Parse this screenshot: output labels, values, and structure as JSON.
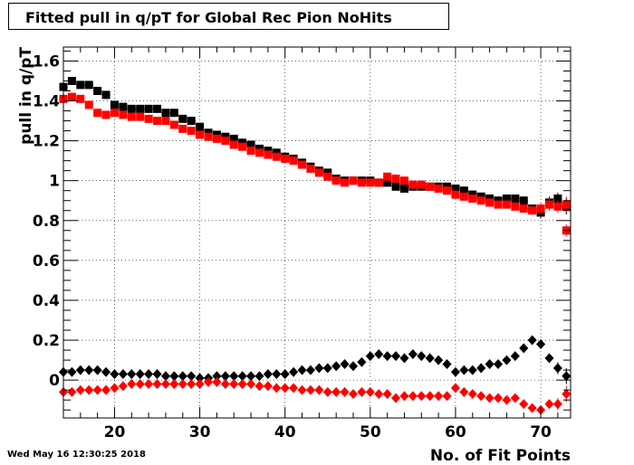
{
  "title": "Fitted pull in q/pT for Global Rec Pion NoHits",
  "timestamp": "Wed May 16 12:30:25 2018",
  "colors": {
    "series_black": "#000000",
    "series_red": "#ff0000",
    "grid": "#000000"
  },
  "chart_data": {
    "type": "scatter",
    "title": "Fitted pull in q/pT for Global Rec Pion NoHits",
    "xlabel": "No. of Fit Points",
    "ylabel": "pull in q/pT",
    "xlim": [
      14,
      73.5
    ],
    "ylim": [
      -0.19,
      1.67
    ],
    "xticks": [
      20,
      30,
      40,
      50,
      60,
      70
    ],
    "xtick_labels": [
      "20",
      "30",
      "40",
      "50",
      "60",
      "70"
    ],
    "yticks": [
      0,
      0.2,
      0.4,
      0.6,
      0.8,
      1,
      1.2,
      1.4,
      1.6
    ],
    "ytick_labels": [
      "0",
      "0.2",
      "0.4",
      "0.6",
      "0.8",
      "1",
      "1.2",
      "1.4",
      "1.6"
    ],
    "grid": true,
    "x": [
      14,
      15,
      16,
      17,
      18,
      19,
      20,
      21,
      22,
      23,
      24,
      25,
      26,
      27,
      28,
      29,
      30,
      31,
      32,
      33,
      34,
      35,
      36,
      37,
      38,
      39,
      40,
      41,
      42,
      43,
      44,
      45,
      46,
      47,
      48,
      49,
      50,
      51,
      52,
      53,
      54,
      55,
      56,
      57,
      58,
      59,
      60,
      61,
      62,
      63,
      64,
      65,
      66,
      67,
      68,
      69,
      70,
      71,
      72,
      73
    ],
    "series": [
      {
        "marker": "square",
        "color": "#000000",
        "values": [
          1.47,
          1.5,
          1.48,
          1.48,
          1.45,
          1.43,
          1.38,
          1.37,
          1.36,
          1.36,
          1.36,
          1.36,
          1.34,
          1.34,
          1.31,
          1.3,
          1.27,
          1.24,
          1.23,
          1.22,
          1.21,
          1.19,
          1.18,
          1.16,
          1.15,
          1.14,
          1.12,
          1.11,
          1.09,
          1.07,
          1.05,
          1.04,
          1.01,
          1.0,
          1.0,
          1.0,
          1.0,
          0.99,
          0.99,
          0.97,
          0.96,
          0.97,
          0.97,
          0.97,
          0.97,
          0.97,
          0.96,
          0.95,
          0.93,
          0.92,
          0.91,
          0.9,
          0.91,
          0.91,
          0.9,
          0.86,
          0.84,
          0.89,
          0.91,
          0.87
        ],
        "errors": [
          0.02,
          0.02,
          0.02,
          0.02,
          0.02,
          0.02,
          0.02,
          0.02,
          0.02,
          0.02,
          0.02,
          0.02,
          0.02,
          0.02,
          0.02,
          0.02,
          0.02,
          0.02,
          0.02,
          0.02,
          0.02,
          0.02,
          0.02,
          0.02,
          0.02,
          0.02,
          0.02,
          0.02,
          0.02,
          0.02,
          0.02,
          0.02,
          0.02,
          0.02,
          0.02,
          0.02,
          0.02,
          0.02,
          0.02,
          0.02,
          0.02,
          0.02,
          0.02,
          0.02,
          0.02,
          0.02,
          0.02,
          0.02,
          0.02,
          0.02,
          0.02,
          0.02,
          0.02,
          0.02,
          0.02,
          0.02,
          0.03,
          0.03,
          0.03,
          0.04
        ]
      },
      {
        "marker": "square",
        "color": "#ff0000",
        "values": [
          1.41,
          1.42,
          1.41,
          1.38,
          1.34,
          1.33,
          1.34,
          1.33,
          1.32,
          1.32,
          1.31,
          1.3,
          1.3,
          1.28,
          1.26,
          1.25,
          1.23,
          1.22,
          1.21,
          1.2,
          1.18,
          1.17,
          1.15,
          1.14,
          1.13,
          1.12,
          1.11,
          1.1,
          1.08,
          1.06,
          1.04,
          1.02,
          1.0,
          0.99,
          1.0,
          0.99,
          0.99,
          0.99,
          1.02,
          1.01,
          1.0,
          0.98,
          0.98,
          0.97,
          0.96,
          0.95,
          0.93,
          0.92,
          0.91,
          0.9,
          0.89,
          0.88,
          0.88,
          0.87,
          0.86,
          0.85,
          0.86,
          0.88,
          0.87,
          0.88
        ],
        "errors": [
          0.02,
          0.02,
          0.02,
          0.02,
          0.02,
          0.02,
          0.02,
          0.02,
          0.02,
          0.02,
          0.02,
          0.02,
          0.02,
          0.02,
          0.02,
          0.02,
          0.02,
          0.02,
          0.02,
          0.02,
          0.02,
          0.02,
          0.02,
          0.02,
          0.02,
          0.02,
          0.02,
          0.02,
          0.02,
          0.02,
          0.02,
          0.02,
          0.02,
          0.02,
          0.02,
          0.02,
          0.02,
          0.02,
          0.02,
          0.02,
          0.02,
          0.02,
          0.02,
          0.02,
          0.02,
          0.02,
          0.02,
          0.02,
          0.02,
          0.02,
          0.02,
          0.02,
          0.02,
          0.02,
          0.02,
          0.02,
          0.03,
          0.03,
          0.03,
          0.04
        ]
      },
      {
        "marker": "diamond",
        "color": "#000000",
        "values": [
          0.04,
          0.04,
          0.05,
          0.05,
          0.05,
          0.04,
          0.03,
          0.03,
          0.03,
          0.03,
          0.03,
          0.03,
          0.02,
          0.02,
          0.02,
          0.02,
          0.01,
          0.01,
          0.02,
          0.02,
          0.02,
          0.02,
          0.02,
          0.02,
          0.03,
          0.03,
          0.03,
          0.04,
          0.05,
          0.05,
          0.06,
          0.06,
          0.07,
          0.08,
          0.07,
          0.09,
          0.12,
          0.13,
          0.12,
          0.12,
          0.11,
          0.13,
          0.12,
          0.11,
          0.1,
          0.08,
          0.04,
          0.05,
          0.05,
          0.06,
          0.08,
          0.08,
          0.1,
          0.12,
          0.16,
          0.2,
          0.18,
          0.11,
          0.06,
          0.02
        ],
        "errors": [
          0.01,
          0.01,
          0.01,
          0.01,
          0.01,
          0.01,
          0.01,
          0.01,
          0.01,
          0.01,
          0.01,
          0.01,
          0.01,
          0.01,
          0.01,
          0.01,
          0.01,
          0.01,
          0.01,
          0.01,
          0.01,
          0.01,
          0.01,
          0.01,
          0.01,
          0.01,
          0.01,
          0.01,
          0.01,
          0.01,
          0.01,
          0.01,
          0.01,
          0.01,
          0.01,
          0.01,
          0.01,
          0.01,
          0.01,
          0.01,
          0.01,
          0.01,
          0.01,
          0.01,
          0.01,
          0.01,
          0.01,
          0.01,
          0.01,
          0.01,
          0.01,
          0.01,
          0.01,
          0.01,
          0.01,
          0.01,
          0.02,
          0.02,
          0.03,
          0.04
        ]
      },
      {
        "marker": "diamond",
        "color": "#ff0000",
        "values": [
          -0.06,
          -0.06,
          -0.05,
          -0.05,
          -0.05,
          -0.05,
          -0.04,
          -0.03,
          -0.02,
          -0.02,
          -0.02,
          -0.02,
          -0.02,
          -0.02,
          -0.02,
          -0.02,
          -0.02,
          -0.01,
          -0.01,
          -0.02,
          -0.02,
          -0.02,
          -0.02,
          -0.03,
          -0.03,
          -0.04,
          -0.04,
          -0.04,
          -0.05,
          -0.05,
          -0.05,
          -0.06,
          -0.06,
          -0.06,
          -0.07,
          -0.06,
          -0.06,
          -0.07,
          -0.07,
          -0.09,
          -0.08,
          -0.08,
          -0.08,
          -0.08,
          -0.08,
          -0.08,
          -0.04,
          -0.06,
          -0.07,
          -0.08,
          -0.09,
          -0.09,
          -0.1,
          -0.09,
          -0.12,
          -0.14,
          -0.15,
          -0.12,
          -0.12,
          -0.07
        ],
        "errors": [
          0.01,
          0.01,
          0.01,
          0.01,
          0.01,
          0.01,
          0.01,
          0.01,
          0.01,
          0.01,
          0.01,
          0.01,
          0.01,
          0.01,
          0.01,
          0.01,
          0.01,
          0.01,
          0.01,
          0.01,
          0.01,
          0.01,
          0.01,
          0.01,
          0.01,
          0.01,
          0.01,
          0.01,
          0.01,
          0.01,
          0.01,
          0.01,
          0.01,
          0.01,
          0.01,
          0.01,
          0.01,
          0.01,
          0.01,
          0.01,
          0.01,
          0.01,
          0.01,
          0.01,
          0.01,
          0.01,
          0.01,
          0.01,
          0.01,
          0.01,
          0.01,
          0.01,
          0.01,
          0.01,
          0.01,
          0.01,
          0.02,
          0.02,
          0.03,
          0.04
        ]
      }
    ],
    "outlier": {
      "x": 73,
      "y": 0.75,
      "marker": "square",
      "color": "#ff0000"
    }
  }
}
